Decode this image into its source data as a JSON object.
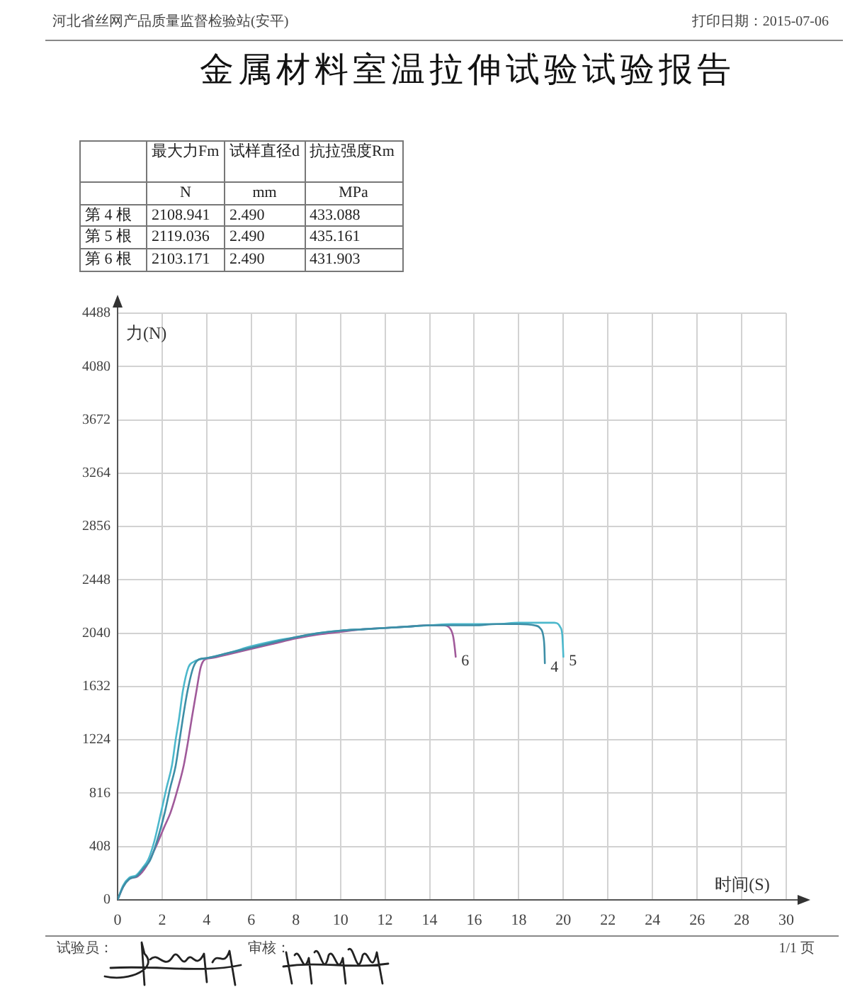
{
  "chart_data": {
    "type": "line",
    "title": "金属材料室温拉伸试验试验报告",
    "xlabel": "时间(S)",
    "ylabel": "力(N)",
    "annotations": [
      "河北省丝网产品质量监督检验站(安平)",
      "打印日期：2015-07-06",
      "最大力Fm",
      "试样直径d",
      "抗拉强度Rm",
      "N",
      "mm",
      "MPa",
      "第 4 根",
      "2108.941",
      "2.490",
      "433.088",
      "第 5 根",
      "2119.036",
      "2.490",
      "435.161",
      "第 6 根",
      "2103.171",
      "2.490",
      "431.903",
      "试验员：",
      "审核：",
      "1/1 页"
    ],
    "series": [
      {
        "name": "4",
        "color": "#3d8ea6",
        "x": [
          0,
          0.25,
          0.53,
          0.85,
          1.15,
          1.45,
          1.75,
          2.12,
          2.35,
          2.61,
          2.78,
          2.93,
          3.14,
          3.4,
          3.65,
          4,
          5,
          6,
          7,
          8,
          9,
          10,
          11,
          12,
          13,
          14,
          15,
          16,
          17,
          18,
          18.7,
          18.95,
          19.1,
          19.15,
          19.17
        ],
        "values": [
          0,
          100,
          160,
          180,
          240,
          300,
          440,
          670,
          850,
          1030,
          1220,
          1390,
          1600,
          1780,
          1840,
          1850,
          1890,
          1930,
          1970,
          2010,
          2040,
          2060,
          2070,
          2080,
          2090,
          2100,
          2100,
          2100,
          2110,
          2110,
          2100,
          2080,
          2020,
          1930,
          1810
        ]
      },
      {
        "name": "5",
        "color": "#4cb8cc",
        "x": [
          0,
          0.25,
          0.53,
          0.85,
          1.1,
          1.38,
          1.65,
          1.95,
          2.2,
          2.44,
          2.6,
          2.76,
          2.93,
          3.18,
          3.4,
          3.7,
          4,
          5,
          6,
          7,
          8,
          9,
          10,
          11,
          12,
          13,
          14,
          15,
          16,
          17,
          18,
          19,
          19.6,
          19.85,
          19.95,
          19.98,
          20.0
        ],
        "values": [
          0,
          110,
          170,
          190,
          240,
          310,
          450,
          670,
          860,
          1030,
          1220,
          1390,
          1600,
          1780,
          1820,
          1840,
          1850,
          1890,
          1940,
          1980,
          2010,
          2040,
          2060,
          2070,
          2080,
          2090,
          2100,
          2110,
          2110,
          2110,
          2120,
          2120,
          2120,
          2090,
          2030,
          1940,
          1860
        ]
      },
      {
        "name": "6",
        "color": "#a05a9a",
        "x": [
          0,
          0.25,
          0.53,
          0.9,
          1.3,
          1.7,
          2.1,
          2.38,
          2.7,
          2.97,
          3.15,
          3.33,
          3.54,
          3.73,
          3.92,
          4.2,
          5,
          6,
          7,
          8,
          9,
          10,
          11,
          12,
          13,
          14,
          14.6,
          14.9,
          15.05,
          15.12,
          15.17
        ],
        "values": [
          0,
          100,
          160,
          180,
          260,
          400,
          560,
          670,
          850,
          1030,
          1200,
          1390,
          1600,
          1780,
          1840,
          1850,
          1880,
          1920,
          1960,
          2000,
          2030,
          2050,
          2070,
          2080,
          2090,
          2100,
          2100,
          2080,
          2020,
          1940,
          1860
        ]
      }
    ],
    "xlim": [
      0,
      30
    ],
    "xticks": [
      0,
      2,
      4,
      6,
      8,
      10,
      12,
      14,
      16,
      18,
      20,
      22,
      24,
      26,
      28,
      30
    ],
    "ylim": [
      0,
      4488
    ],
    "yticks": [
      0,
      408,
      816,
      1224,
      1632,
      2040,
      2448,
      2856,
      3264,
      3672,
      4080,
      4488
    ],
    "grid": true,
    "marker": "none",
    "line_style": "solid"
  }
}
